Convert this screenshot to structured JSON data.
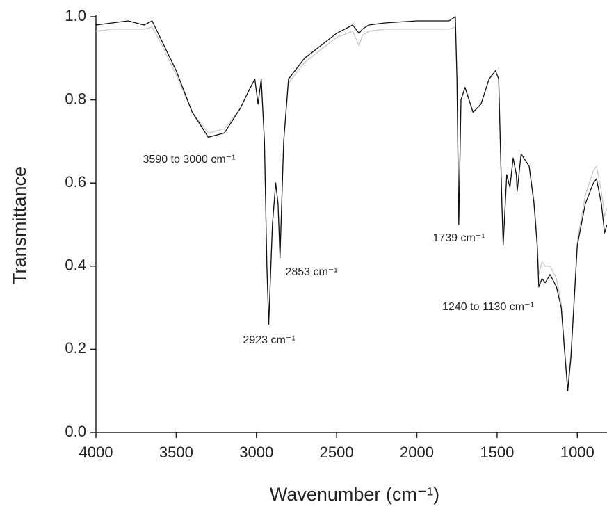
{
  "chart_data": {
    "type": "line",
    "x_label": "Wavenumber (cm⁻¹)",
    "y_label": "Transmittance",
    "x": [
      4000,
      3900,
      3800,
      3700,
      3650,
      3600,
      3500,
      3400,
      3300,
      3200,
      3100,
      3050,
      3010,
      2990,
      2970,
      2950,
      2935,
      2923,
      2900,
      2880,
      2865,
      2853,
      2830,
      2800,
      2700,
      2600,
      2500,
      2400,
      2360,
      2340,
      2300,
      2200,
      2000,
      1800,
      1760,
      1750,
      1739,
      1725,
      1700,
      1650,
      1600,
      1550,
      1510,
      1490,
      1470,
      1462,
      1440,
      1420,
      1400,
      1380,
      1375,
      1350,
      1300,
      1270,
      1250,
      1240,
      1220,
      1200,
      1170,
      1130,
      1100,
      1080,
      1060,
      1040,
      1000,
      950,
      900,
      880,
      850,
      830,
      815
    ],
    "series": [
      {
        "color": "#c8c8c8",
        "values": [
          0.965,
          0.97,
          0.97,
          0.97,
          0.975,
          0.94,
          0.86,
          0.77,
          0.72,
          0.73,
          0.78,
          0.82,
          0.85,
          0.79,
          0.85,
          0.7,
          0.41,
          0.27,
          0.5,
          0.6,
          0.55,
          0.43,
          0.7,
          0.84,
          0.89,
          0.92,
          0.95,
          0.965,
          0.93,
          0.955,
          0.965,
          0.97,
          0.97,
          0.97,
          0.975,
          0.85,
          0.51,
          0.8,
          0.83,
          0.77,
          0.79,
          0.85,
          0.87,
          0.85,
          0.56,
          0.46,
          0.62,
          0.59,
          0.66,
          0.62,
          0.58,
          0.67,
          0.64,
          0.56,
          0.47,
          0.38,
          0.41,
          0.4,
          0.4,
          0.37,
          0.31,
          0.21,
          0.11,
          0.19,
          0.46,
          0.57,
          0.63,
          0.64,
          0.58,
          0.52,
          0.54
        ]
      },
      {
        "color": "#111111",
        "values": [
          0.98,
          0.985,
          0.99,
          0.98,
          0.99,
          0.95,
          0.87,
          0.77,
          0.71,
          0.72,
          0.78,
          0.82,
          0.85,
          0.79,
          0.85,
          0.7,
          0.4,
          0.26,
          0.5,
          0.6,
          0.55,
          0.42,
          0.7,
          0.85,
          0.9,
          0.93,
          0.96,
          0.98,
          0.96,
          0.97,
          0.98,
          0.985,
          0.99,
          0.99,
          1.0,
          0.85,
          0.5,
          0.8,
          0.83,
          0.77,
          0.79,
          0.85,
          0.87,
          0.85,
          0.55,
          0.45,
          0.62,
          0.59,
          0.66,
          0.62,
          0.58,
          0.67,
          0.64,
          0.55,
          0.45,
          0.35,
          0.37,
          0.36,
          0.38,
          0.35,
          0.3,
          0.2,
          0.1,
          0.18,
          0.45,
          0.55,
          0.6,
          0.61,
          0.55,
          0.48,
          0.5
        ]
      }
    ],
    "xlim": [
      4000,
      815
    ],
    "ylim": [
      0,
      1
    ],
    "xticks": [
      4000,
      3500,
      3000,
      2500,
      2000,
      1500,
      1000
    ],
    "yticks": [
      {
        "value": 0,
        "label": "0.0"
      },
      0.2,
      0.4,
      0.6,
      0.8,
      {
        "value": 1,
        "label": "1.0"
      }
    ],
    "annotations": [
      "3590 to 3000 cm⁻¹",
      "2923 cm⁻¹",
      "2853 cm⁻¹",
      "1739 cm⁻¹",
      "1240 to 1130 cm⁻¹"
    ]
  }
}
